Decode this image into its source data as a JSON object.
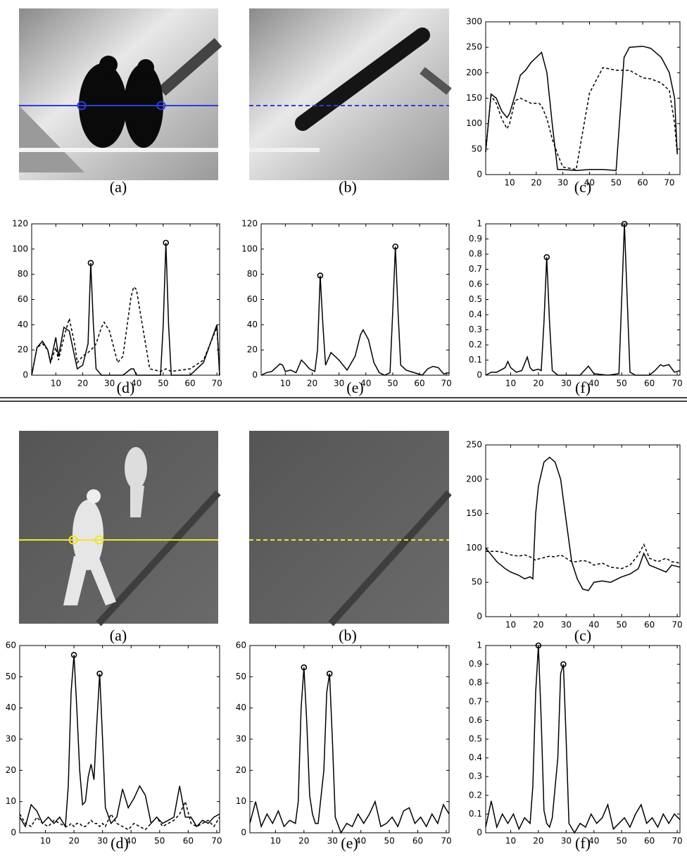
{
  "images": [
    {
      "caption": "(a)"
    },
    {
      "caption": "(b)"
    },
    {
      "caption": "(a)"
    },
    {
      "caption": "(b)"
    }
  ],
  "chart_data": [
    {
      "type": "line",
      "caption": "(c)",
      "xlim": [
        1,
        74
      ],
      "ylim": [
        0,
        300
      ],
      "xticks": [
        10,
        20,
        30,
        40,
        50,
        60,
        70
      ],
      "yticks": [
        0,
        50,
        100,
        150,
        200,
        250,
        300
      ],
      "x": [
        1,
        3,
        5,
        7,
        9,
        10,
        12,
        14,
        16,
        18,
        21,
        22,
        24,
        26,
        28,
        30,
        35,
        40,
        45,
        50,
        53,
        55,
        60,
        63,
        67,
        70,
        72,
        73
      ],
      "series": [
        {
          "color": "#000000",
          "dash": "solid",
          "values": [
            45,
            158,
            150,
            125,
            112,
            120,
            155,
            195,
            205,
            220,
            235,
            240,
            200,
            100,
            10,
            10,
            8,
            10,
            10,
            8,
            230,
            250,
            252,
            248,
            230,
            200,
            150,
            40
          ]
        },
        {
          "color": "#000000",
          "dash": "dashed",
          "values": [
            45,
            155,
            140,
            110,
            90,
            100,
            145,
            150,
            145,
            140,
            140,
            135,
            110,
            70,
            40,
            15,
            10,
            160,
            210,
            205,
            205,
            205,
            190,
            188,
            180,
            165,
            100,
            40
          ]
        }
      ]
    },
    {
      "type": "line",
      "caption": "(d)",
      "xlim": [
        1,
        71
      ],
      "ylim": [
        0,
        120
      ],
      "xticks": [
        10,
        20,
        30,
        40,
        50,
        60,
        70
      ],
      "yticks": [
        0,
        20,
        40,
        60,
        80,
        100,
        120
      ],
      "x": [
        1,
        3,
        5,
        7,
        8,
        10,
        11,
        13,
        15,
        17,
        18,
        20,
        22,
        23,
        24,
        25,
        27,
        28,
        30,
        33,
        35,
        38,
        39,
        40,
        43,
        45,
        49,
        50,
        51,
        52,
        53,
        60,
        65,
        70,
        71
      ],
      "series": [
        {
          "color": "#000000",
          "dash": "solid",
          "values": [
            0,
            22,
            27,
            20,
            10,
            30,
            15,
            38,
            35,
            15,
            5,
            8,
            25,
            89,
            40,
            5,
            0,
            0,
            0,
            0,
            0,
            5,
            5,
            0,
            0,
            0,
            0,
            40,
            105,
            40,
            0,
            0,
            10,
            40,
            0
          ]
        },
        {
          "color": "#000000",
          "dash": "dashed",
          "values": [
            0,
            22,
            25,
            20,
            10,
            22,
            12,
            30,
            45,
            25,
            10,
            15,
            18,
            20,
            22,
            25,
            38,
            42,
            35,
            10,
            15,
            62,
            70,
            68,
            30,
            5,
            3,
            4,
            5,
            4,
            3,
            5,
            12,
            38,
            0
          ]
        }
      ],
      "markers": {
        "x": [
          23,
          51
        ],
        "values": [
          89,
          105
        ]
      }
    },
    {
      "type": "line",
      "caption": "(e)",
      "xlim": [
        1,
        71
      ],
      "ylim": [
        0,
        120
      ],
      "xticks": [
        10,
        20,
        30,
        40,
        50,
        60,
        70
      ],
      "yticks": [
        0,
        20,
        40,
        60,
        80,
        100,
        120
      ],
      "x": [
        1,
        3,
        5,
        8,
        9,
        10,
        12,
        14,
        16,
        17,
        19,
        21,
        22,
        23,
        24,
        25,
        27,
        30,
        33,
        36,
        38,
        39,
        41,
        43,
        45,
        47,
        49,
        50,
        51,
        52,
        53,
        55,
        58,
        61,
        63,
        65,
        67,
        69,
        71
      ],
      "series": [
        {
          "color": "#000000",
          "dash": "solid",
          "values": [
            0,
            2,
            3,
            9,
            8,
            3,
            4,
            2,
            12,
            10,
            5,
            3,
            20,
            79,
            40,
            8,
            18,
            12,
            4,
            15,
            32,
            36,
            28,
            10,
            2,
            0,
            2,
            50,
            102,
            50,
            8,
            4,
            2,
            0,
            5,
            7,
            6,
            1,
            2
          ]
        }
      ],
      "markers": {
        "x": [
          23,
          51
        ],
        "values": [
          79,
          102
        ]
      }
    },
    {
      "type": "line",
      "caption": "(f)",
      "xlim": [
        1,
        71
      ],
      "ylim": [
        0,
        1
      ],
      "xticks": [
        10,
        20,
        30,
        40,
        50,
        60,
        70
      ],
      "yticks": [
        0,
        0.1,
        0.2,
        0.3,
        0.4,
        0.5,
        0.6,
        0.7,
        0.8,
        0.9,
        1
      ],
      "x": [
        1,
        3,
        5,
        8,
        9,
        10,
        12,
        14,
        16,
        17,
        18,
        20,
        21,
        22,
        23,
        24,
        25,
        27,
        30,
        35,
        37,
        38,
        40,
        45,
        49,
        50,
        51,
        52,
        53,
        55,
        60,
        62,
        64,
        65,
        67,
        69,
        71
      ],
      "series": [
        {
          "color": "#000000",
          "dash": "solid",
          "values": [
            0,
            0.02,
            0.02,
            0.05,
            0.09,
            0.05,
            0.02,
            0.03,
            0.12,
            0.05,
            0.03,
            0.04,
            0.03,
            0.35,
            0.78,
            0.35,
            0.03,
            0,
            0,
            0,
            0.04,
            0.06,
            0.01,
            0,
            0.01,
            0.5,
            1,
            0.5,
            0.02,
            0,
            0,
            0.03,
            0.07,
            0.06,
            0.07,
            0.02,
            0.03
          ]
        }
      ],
      "markers": {
        "x": [
          23,
          51
        ],
        "values": [
          0.78,
          1
        ]
      }
    },
    {
      "type": "line",
      "caption": "(c)",
      "xlim": [
        1,
        71
      ],
      "ylim": [
        0,
        250
      ],
      "xticks": [
        10,
        20,
        30,
        40,
        50,
        60,
        70
      ],
      "yticks": [
        0,
        50,
        100,
        150,
        200,
        250
      ],
      "x": [
        1,
        3,
        5,
        8,
        10,
        13,
        15,
        17,
        18,
        19,
        20,
        22,
        24,
        26,
        28,
        30,
        32,
        34,
        36,
        38,
        40,
        43,
        46,
        50,
        53,
        56,
        58,
        60,
        63,
        66,
        68,
        71
      ],
      "series": [
        {
          "color": "#000000",
          "dash": "solid",
          "values": [
            100,
            90,
            80,
            70,
            65,
            60,
            55,
            58,
            55,
            150,
            190,
            225,
            232,
            225,
            200,
            140,
            80,
            55,
            40,
            38,
            50,
            52,
            50,
            58,
            62,
            70,
            92,
            75,
            70,
            65,
            75,
            72
          ]
        },
        {
          "color": "#000000",
          "dash": "dashed",
          "values": [
            95,
            95,
            95,
            93,
            90,
            88,
            90,
            87,
            85,
            82,
            84,
            86,
            88,
            87,
            90,
            85,
            80,
            80,
            82,
            80,
            75,
            78,
            72,
            70,
            75,
            90,
            105,
            85,
            80,
            85,
            80,
            78
          ]
        }
      ]
    },
    {
      "type": "line",
      "caption": "(d)",
      "xlim": [
        1,
        71
      ],
      "ylim": [
        0,
        60
      ],
      "xticks": [
        10,
        20,
        30,
        40,
        50,
        60,
        70
      ],
      "yticks": [
        0,
        10,
        20,
        30,
        40,
        50,
        60
      ],
      "x": [
        1,
        3,
        5,
        7,
        9,
        11,
        13,
        15,
        17,
        18,
        19,
        20,
        21,
        22,
        23,
        24,
        25,
        26,
        27,
        28,
        29,
        30,
        31,
        33,
        35,
        37,
        39,
        41,
        43,
        45,
        47,
        49,
        51,
        53,
        55,
        57,
        59,
        61,
        63,
        65,
        67,
        69,
        71
      ],
      "series": [
        {
          "color": "#000000",
          "dash": "solid",
          "values": [
            5,
            2,
            9,
            7,
            3,
            5,
            3,
            5,
            2,
            15,
            45,
            57,
            40,
            20,
            9,
            10,
            18,
            22,
            17,
            35,
            51,
            30,
            8,
            3,
            5,
            14,
            8,
            11,
            15,
            12,
            3,
            5,
            3,
            4,
            5,
            15,
            5,
            5,
            2,
            4,
            3,
            5,
            6
          ]
        },
        {
          "color": "#000000",
          "dash": "dashed",
          "values": [
            6,
            3,
            2,
            5,
            3,
            2,
            4,
            3,
            2,
            2,
            3,
            2,
            3,
            3,
            2,
            2,
            3,
            4,
            3,
            3,
            2,
            3,
            2,
            6,
            3,
            2,
            1,
            3,
            2,
            1,
            3,
            5,
            2,
            3,
            4,
            6,
            10,
            3,
            2,
            3,
            4,
            2,
            5
          ]
        }
      ],
      "markers": {
        "x": [
          20,
          29
        ],
        "values": [
          57,
          51
        ]
      }
    },
    {
      "type": "line",
      "caption": "(e)",
      "xlim": [
        1,
        71
      ],
      "ylim": [
        0,
        60
      ],
      "xticks": [
        10,
        20,
        30,
        40,
        50,
        60,
        70
      ],
      "yticks": [
        0,
        10,
        20,
        30,
        40,
        50,
        60
      ],
      "x": [
        1,
        3,
        5,
        7,
        9,
        11,
        13,
        15,
        17,
        18,
        19,
        20,
        21,
        22,
        23,
        24,
        25,
        27,
        28,
        29,
        30,
        31,
        33,
        35,
        37,
        39,
        41,
        43,
        45,
        47,
        49,
        51,
        53,
        55,
        57,
        59,
        61,
        63,
        65,
        67,
        69,
        71
      ],
      "series": [
        {
          "color": "#000000",
          "dash": "solid",
          "values": [
            3,
            10,
            2,
            6,
            3,
            7,
            2,
            4,
            3,
            10,
            40,
            53,
            35,
            12,
            6,
            3,
            3,
            20,
            45,
            51,
            30,
            5,
            0,
            3,
            2,
            6,
            3,
            6,
            10,
            2,
            3,
            5,
            2,
            7,
            8,
            3,
            5,
            2,
            6,
            3,
            9,
            6
          ]
        }
      ],
      "markers": {
        "x": [
          20,
          29
        ],
        "values": [
          53,
          51
        ]
      }
    },
    {
      "type": "line",
      "caption": "(f)",
      "xlim": [
        1,
        71
      ],
      "ylim": [
        0,
        1
      ],
      "xticks": [
        10,
        20,
        30,
        40,
        50,
        60,
        70
      ],
      "yticks": [
        0,
        0.1,
        0.2,
        0.3,
        0.4,
        0.5,
        0.6,
        0.7,
        0.8,
        0.9,
        1
      ],
      "x": [
        1,
        3,
        5,
        7,
        9,
        11,
        13,
        15,
        17,
        18,
        19,
        20,
        21,
        22,
        23,
        24,
        25,
        27,
        28,
        29,
        30,
        31,
        33,
        35,
        37,
        39,
        41,
        43,
        45,
        47,
        49,
        51,
        53,
        55,
        57,
        59,
        61,
        63,
        65,
        67,
        69,
        71
      ],
      "series": [
        {
          "color": "#000000",
          "dash": "solid",
          "values": [
            0.03,
            0.17,
            0.03,
            0.1,
            0.05,
            0.1,
            0.02,
            0.08,
            0.05,
            0.25,
            0.75,
            1,
            0.6,
            0.12,
            0.05,
            0.03,
            0.08,
            0.4,
            0.85,
            0.9,
            0.5,
            0.05,
            0,
            0.05,
            0.03,
            0.1,
            0.05,
            0.08,
            0.15,
            0.02,
            0.05,
            0.08,
            0.03,
            0.1,
            0.15,
            0.05,
            0.08,
            0.03,
            0.1,
            0.05,
            0.1,
            0.07
          ]
        }
      ],
      "markers": {
        "x": [
          20,
          29
        ],
        "values": [
          1,
          0.9
        ]
      }
    }
  ]
}
